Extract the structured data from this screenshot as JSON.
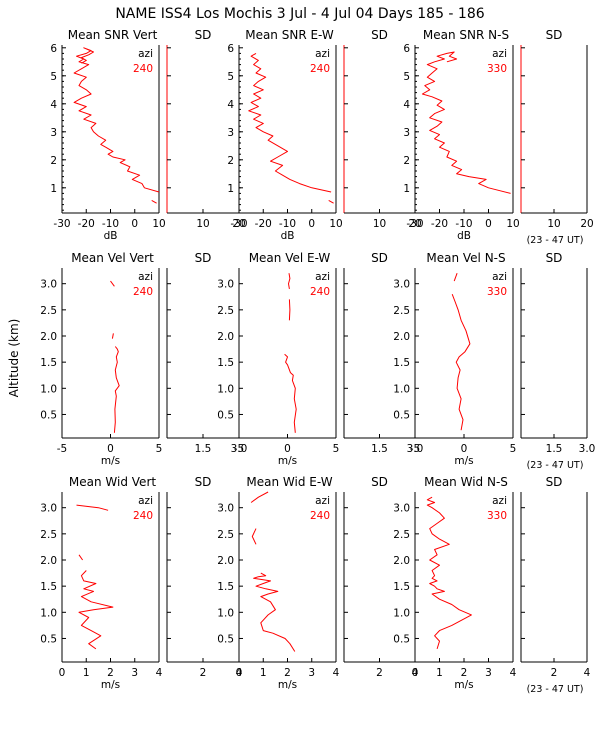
{
  "title": "NAME ISS4 Los Mochis    3 Jul -  4 Jul 04 Days 185 - 186",
  "ylabel": "Altitude (km)",
  "ut_note": "(23 - 47 UT)",
  "colors": {
    "profile": "#ff0000",
    "axis": "#000000"
  },
  "chart_data": [
    {
      "type": "line",
      "row": "snr",
      "title": "Mean SNR Vert",
      "sd_title": "SD",
      "xlabel": "dB",
      "azi_label": "azi",
      "azi_value": "240",
      "xlim": [
        -30,
        10
      ],
      "xticks": [
        "-30",
        "-20",
        "-10",
        "0",
        "10"
      ],
      "sd_xticks": [
        "10",
        "20"
      ],
      "ylim": [
        0.1,
        6.1
      ],
      "yticks": [
        "1",
        "2",
        "3",
        "4",
        "5",
        "6"
      ],
      "series": [
        {
          "x": [
            9,
            7
          ],
          "y": [
            0.45,
            0.55
          ]
        },
        {
          "x": [
            10,
            4,
            3,
            -1,
            2,
            -3,
            -2,
            -6,
            -4,
            -9,
            -11,
            -9,
            -12,
            -14,
            -12,
            -15,
            -17,
            -18,
            -16,
            -21,
            -18,
            -23,
            -20,
            -25,
            -22,
            -18,
            -20,
            -23,
            -22,
            -20,
            -25,
            -22,
            -19,
            -23,
            -21,
            -24,
            -20,
            -18,
            -21,
            -17,
            -19,
            -22,
            -20,
            -22
          ],
          "y": [
            0.85,
            1.0,
            1.15,
            1.3,
            1.45,
            1.6,
            1.75,
            1.9,
            2.0,
            2.1,
            2.2,
            2.3,
            2.45,
            2.55,
            2.7,
            2.85,
            3.0,
            3.15,
            3.3,
            3.45,
            3.6,
            3.75,
            3.9,
            4.05,
            4.2,
            4.35,
            4.5,
            4.65,
            4.8,
            4.95,
            5.1,
            5.25,
            5.4,
            5.5,
            5.6,
            5.7,
            5.8,
            5.9,
            6.0,
            5.85,
            5.75,
            5.65,
            5.55,
            5.45
          ]
        }
      ]
    },
    {
      "type": "line",
      "row": "snr",
      "title": "Mean SNR E-W",
      "sd_title": "SD",
      "xlabel": "dB",
      "azi_label": "azi",
      "azi_value": "240",
      "xlim": [
        -30,
        10
      ],
      "xticks": [
        "-30",
        "-20",
        "-10",
        "0",
        "10"
      ],
      "sd_xticks": [
        "10",
        "20"
      ],
      "ylim": [
        0.1,
        6.1
      ],
      "yticks": [
        "1",
        "2",
        "3",
        "4",
        "5",
        "6"
      ],
      "series": [
        {
          "x": [
            9,
            7
          ],
          "y": [
            0.45,
            0.55
          ]
        },
        {
          "x": [
            8,
            0,
            -5,
            -9,
            -12,
            -15,
            -12,
            -17,
            -14,
            -10,
            -14,
            -18,
            -16,
            -20,
            -23,
            -20,
            -24,
            -21,
            -26,
            -22,
            -25,
            -21,
            -24,
            -20,
            -24,
            -22,
            -19,
            -23,
            -21,
            -24,
            -22,
            -25,
            -23
          ],
          "y": [
            0.85,
            1.0,
            1.15,
            1.3,
            1.45,
            1.6,
            1.8,
            1.95,
            2.1,
            2.3,
            2.5,
            2.7,
            2.85,
            3.0,
            3.15,
            3.3,
            3.45,
            3.6,
            3.75,
            3.9,
            4.05,
            4.2,
            4.35,
            4.5,
            4.65,
            4.8,
            4.95,
            5.1,
            5.25,
            5.4,
            5.55,
            5.7,
            5.8
          ]
        }
      ]
    },
    {
      "type": "line",
      "row": "snr",
      "title": "Mean SNR N-S",
      "sd_title": "SD",
      "xlabel": "dB",
      "azi_label": "azi",
      "azi_value": "330",
      "xlim": [
        -30,
        10
      ],
      "xticks": [
        "-30",
        "-20",
        "-10",
        "0",
        "10"
      ],
      "sd_xticks": [
        "10",
        "20"
      ],
      "ylim": [
        0.1,
        6.1
      ],
      "yticks": [
        "1",
        "2",
        "3",
        "4",
        "5",
        "6"
      ],
      "series": [
        {
          "x": [
            9,
            0,
            -4,
            -1,
            -8,
            -13,
            -11,
            -15,
            -13,
            -17,
            -16,
            -20,
            -18,
            -22,
            -20,
            -24,
            -21,
            -19,
            -24,
            -22,
            -18,
            -21,
            -19,
            -23,
            -27,
            -24,
            -26,
            -22,
            -25,
            -23,
            -21,
            -25,
            -22,
            -18,
            -21,
            -17,
            -14,
            -16,
            -13,
            -17
          ],
          "y": [
            0.8,
            1.0,
            1.15,
            1.3,
            1.4,
            1.5,
            1.65,
            1.8,
            1.95,
            2.1,
            2.3,
            2.45,
            2.6,
            2.75,
            2.9,
            3.05,
            3.2,
            3.35,
            3.5,
            3.65,
            3.8,
            3.95,
            4.1,
            4.25,
            4.35,
            4.5,
            4.65,
            4.8,
            4.95,
            5.1,
            5.25,
            5.4,
            5.5,
            5.6,
            5.7,
            5.8,
            5.85,
            5.7,
            5.6,
            5.5
          ]
        }
      ]
    },
    {
      "type": "line",
      "row": "vel",
      "title": "Mean Vel Vert",
      "sd_title": "SD",
      "xlabel": "m/s",
      "azi_label": "azi",
      "azi_value": "240",
      "xlim": [
        -5,
        5
      ],
      "xticks": [
        "-5",
        "0",
        "5"
      ],
      "sd_xticks": [
        "1.5",
        "3.0"
      ],
      "ylim": [
        0.05,
        3.3
      ],
      "yticks": [
        "0.5",
        "1.0",
        "1.5",
        "2.0",
        "2.5",
        "3.0"
      ],
      "series": [
        {
          "x": [
            0.4,
            0.5,
            0.45,
            0.6,
            0.5,
            0.9,
            0.6,
            0.5,
            0.7,
            0.6,
            0.8,
            0.7,
            0.5
          ],
          "y": [
            0.15,
            0.35,
            0.6,
            0.85,
            0.95,
            1.05,
            1.2,
            1.35,
            1.5,
            1.6,
            1.7,
            1.75,
            1.8
          ]
        },
        {
          "x": [
            0.2,
            0.3
          ],
          "y": [
            1.95,
            2.05
          ]
        },
        {
          "x": [
            0.0,
            0.4
          ],
          "y": [
            3.05,
            2.95
          ]
        }
      ]
    },
    {
      "type": "line",
      "row": "vel",
      "title": "Mean Vel E-W",
      "sd_title": "SD",
      "xlabel": "m/s",
      "azi_label": "azi",
      "azi_value": "240",
      "xlim": [
        -5,
        5
      ],
      "xticks": [
        "-5",
        "0",
        "5"
      ],
      "sd_xticks": [
        "1.5",
        "3.0"
      ],
      "ylim": [
        0.05,
        3.3
      ],
      "yticks": [
        "0.5",
        "1.0",
        "1.5",
        "2.0",
        "2.5",
        "3.0"
      ],
      "series": [
        {
          "x": [
            0.8,
            0.7,
            0.9,
            0.7,
            0.8,
            0.5,
            0.6,
            0.3,
            0.1,
            0.0,
            -0.2,
            0.0,
            -0.3
          ],
          "y": [
            0.15,
            0.35,
            0.6,
            0.8,
            1.0,
            1.15,
            1.25,
            1.3,
            1.4,
            1.45,
            1.5,
            1.6,
            1.65
          ]
        },
        {
          "x": [
            0.2,
            0.25,
            0.2
          ],
          "y": [
            2.3,
            2.5,
            2.7
          ]
        },
        {
          "x": [
            0.2,
            0.1,
            0.25,
            0.15
          ],
          "y": [
            2.9,
            3.0,
            3.1,
            3.2
          ]
        }
      ]
    },
    {
      "type": "line",
      "row": "vel",
      "title": "Mean Vel N-S",
      "sd_title": "SD",
      "xlabel": "m/s",
      "azi_label": "azi",
      "azi_value": "330",
      "xlim": [
        -5,
        5
      ],
      "xticks": [
        "-5",
        "0",
        "5"
      ],
      "sd_xticks": [
        "1.5",
        "3.0"
      ],
      "ylim": [
        0.05,
        3.3
      ],
      "yticks": [
        "0.5",
        "1.0",
        "1.5",
        "2.0",
        "2.5",
        "3.0"
      ],
      "series": [
        {
          "x": [
            -0.3,
            -0.1,
            -0.5,
            -0.3,
            -0.7,
            -0.6,
            -0.4,
            -0.8,
            -0.5,
            0.1,
            0.6,
            0.2,
            -0.3,
            -0.6,
            -0.9,
            -1.2
          ],
          "y": [
            0.2,
            0.4,
            0.6,
            0.8,
            1.0,
            1.2,
            1.35,
            1.5,
            1.6,
            1.7,
            1.85,
            2.1,
            2.3,
            2.5,
            2.65,
            2.8
          ]
        },
        {
          "x": [
            -1.0,
            -0.7
          ],
          "y": [
            3.05,
            3.2
          ]
        }
      ]
    },
    {
      "type": "line",
      "row": "wid",
      "title": "Mean Wid Vert",
      "sd_title": "SD",
      "xlabel": "m/s",
      "azi_label": "azi",
      "azi_value": "240",
      "xlim": [
        0,
        4
      ],
      "xticks": [
        "0",
        "1",
        "2",
        "3",
        "4"
      ],
      "sd_xticks": [
        "2",
        "4"
      ],
      "ylim": [
        0.05,
        3.3
      ],
      "yticks": [
        "0.5",
        "1.0",
        "1.5",
        "2.0",
        "2.5",
        "3.0"
      ],
      "series": [
        {
          "x": [
            1.4,
            1.1,
            1.6,
            1.2,
            0.8,
            1.1,
            0.7,
            1.3,
            2.1,
            1.2,
            0.8,
            1.3,
            0.9,
            1.4,
            0.9,
            0.8,
            0.9,
            1.0
          ],
          "y": [
            0.3,
            0.4,
            0.55,
            0.65,
            0.75,
            0.9,
            1.0,
            1.05,
            1.1,
            1.2,
            1.3,
            1.4,
            1.45,
            1.55,
            1.6,
            1.7,
            1.75,
            1.8
          ]
        },
        {
          "x": [
            0.7,
            0.85
          ],
          "y": [
            2.1,
            2.0
          ]
        },
        {
          "x": [
            0.6,
            1.5,
            1.9
          ],
          "y": [
            3.05,
            3.0,
            2.95
          ]
        }
      ]
    },
    {
      "type": "line",
      "row": "wid",
      "title": "Mean Wid E-W",
      "sd_title": "SD",
      "xlabel": "m/s",
      "azi_label": "azi",
      "azi_value": "240",
      "xlim": [
        0,
        4
      ],
      "xticks": [
        "0",
        "1",
        "2",
        "3",
        "4"
      ],
      "sd_xticks": [
        "2",
        "4"
      ],
      "ylim": [
        0.05,
        3.3
      ],
      "yticks": [
        "0.5",
        "1.0",
        "1.5",
        "2.0",
        "2.5",
        "3.0"
      ],
      "series": [
        {
          "x": [
            2.3,
            2.1,
            1.9,
            1.4,
            1.0,
            0.9,
            1.2,
            1.5,
            1.3,
            0.9,
            1.2,
            1.6,
            1.1,
            0.7,
            1.0,
            1.3,
            0.9,
            0.6,
            0.8,
            1.1,
            0.9
          ],
          "y": [
            0.25,
            0.4,
            0.5,
            0.6,
            0.65,
            0.8,
            0.95,
            1.05,
            1.2,
            1.3,
            1.35,
            1.4,
            1.45,
            1.5,
            1.55,
            1.6,
            1.63,
            1.65,
            1.68,
            1.7,
            1.75
          ]
        },
        {
          "x": [
            0.7,
            0.55,
            0.7
          ],
          "y": [
            2.3,
            2.45,
            2.6
          ]
        },
        {
          "x": [
            0.5,
            0.8,
            1.2
          ],
          "y": [
            3.1,
            3.2,
            3.3
          ]
        }
      ]
    },
    {
      "type": "line",
      "row": "wid",
      "title": "Mean Wid N-S",
      "sd_title": "SD",
      "xlabel": "m/s",
      "azi_label": "azi",
      "azi_value": "330",
      "xlim": [
        0,
        4
      ],
      "xticks": [
        "0",
        "1",
        "2",
        "3",
        "4"
      ],
      "sd_xticks": [
        "2",
        "4"
      ],
      "ylim": [
        0.05,
        3.3
      ],
      "yticks": [
        "0.5",
        "1.0",
        "1.5",
        "2.0",
        "2.5",
        "3.0"
      ],
      "series": [
        {
          "x": [
            0.9,
            1.0,
            0.8,
            1.0,
            1.5,
            1.9,
            2.3,
            1.8,
            1.5,
            1.0,
            0.7,
            1.2,
            0.9,
            0.8,
            0.6,
            0.9,
            0.7,
            0.8,
            0.7,
            1.0,
            0.6,
            0.9,
            0.8,
            1.4,
            1.0,
            0.7,
            0.6,
            0.9,
            1.2,
            1.0,
            0.7,
            0.5,
            0.8,
            0.5,
            0.7
          ],
          "y": [
            0.3,
            0.45,
            0.55,
            0.65,
            0.75,
            0.85,
            0.95,
            1.05,
            1.15,
            1.25,
            1.35,
            1.4,
            1.45,
            1.5,
            1.55,
            1.6,
            1.65,
            1.7,
            1.8,
            1.9,
            2.0,
            2.1,
            2.2,
            2.3,
            2.4,
            2.5,
            2.6,
            2.7,
            2.8,
            2.9,
            3.0,
            3.05,
            3.1,
            3.15,
            3.2
          ]
        }
      ]
    }
  ]
}
